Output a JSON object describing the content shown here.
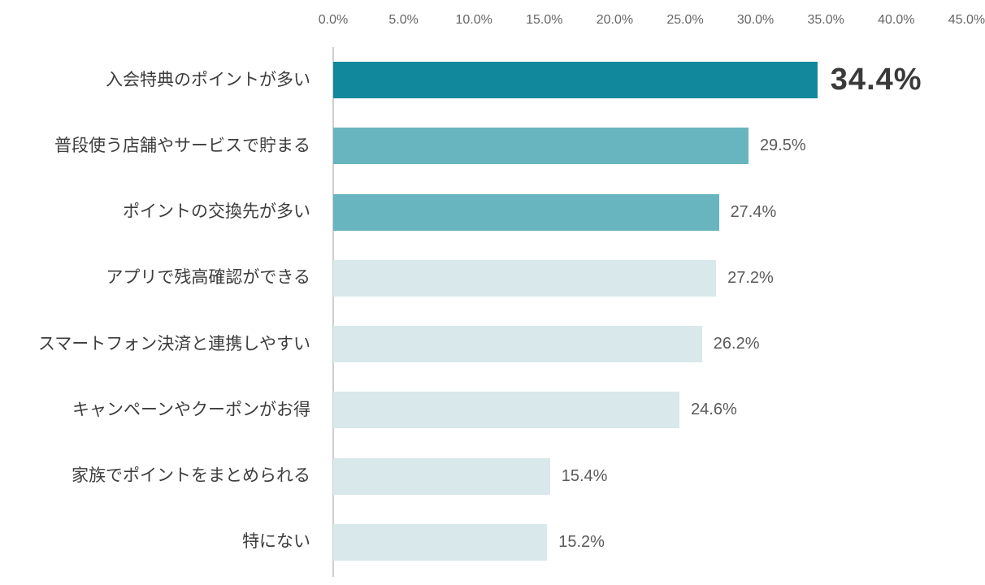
{
  "chart_data": {
    "type": "bar",
    "orientation": "horizontal",
    "title": "",
    "categories": [
      "入会特典のポイントが多い",
      "普段使う店舗やサービスで貯まる",
      "ポイントの交換先が多い",
      "アプリで残高確認ができる",
      "スマートフォン決済と連携しやすい",
      "キャンペーンやクーポンがお得",
      "家族でポイントをまとめられる",
      "特にない"
    ],
    "values": [
      34.4,
      29.5,
      27.4,
      27.2,
      26.2,
      24.6,
      15.4,
      15.2
    ],
    "value_labels": [
      "34.4%",
      "29.5%",
      "27.4%",
      "27.2%",
      "26.2%",
      "24.6%",
      "15.4%",
      "15.2%"
    ],
    "x_ticks": [
      "0.0%",
      "5.0%",
      "10.0%",
      "15.0%",
      "20.0%",
      "25.0%",
      "30.0%",
      "35.0%",
      "40.0%",
      "45.0%"
    ],
    "xlim": [
      0,
      45
    ],
    "grid": false,
    "legend": null,
    "emphasized_row_index": 0,
    "bar_color_roles": [
      "highlight",
      "mid",
      "mid",
      "light",
      "light",
      "light",
      "light",
      "light"
    ],
    "colors": {
      "highlight": "#12889c",
      "mid": "#68b5bf",
      "light": "#d8e8eb",
      "axis_line": "#cfcfcf",
      "tick_text": "#666666",
      "category_text": "#3d3d3d",
      "value_text": "#5a5a5a",
      "value_text_emphasis": "#3a3a3a"
    }
  }
}
